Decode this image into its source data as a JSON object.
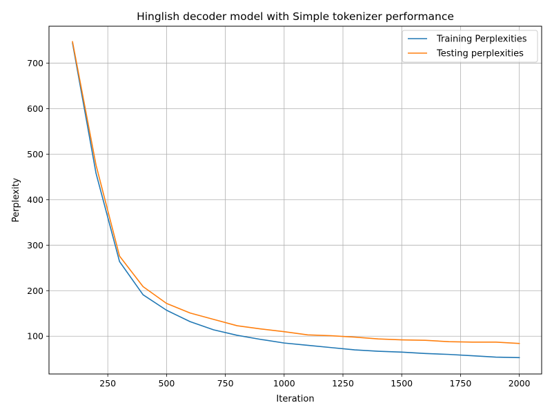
{
  "chart_data": {
    "type": "line",
    "title": "Hinglish decoder model with Simple tokenizer performance",
    "xlabel": "Iteration",
    "ylabel": "Perplexity",
    "xlim": [
      0,
      2095
    ],
    "ylim": [
      17,
      781
    ],
    "xticks": [
      250,
      500,
      750,
      1000,
      1250,
      1500,
      1750,
      2000
    ],
    "yticks": [
      100,
      200,
      300,
      400,
      500,
      600,
      700
    ],
    "grid": true,
    "legend_position": "upper right",
    "x": [
      100,
      200,
      300,
      400,
      500,
      600,
      700,
      800,
      900,
      1000,
      1100,
      1200,
      1300,
      1400,
      1500,
      1600,
      1700,
      1800,
      1900,
      2000
    ],
    "series": [
      {
        "name": "Training Perplexities",
        "color": "#1f77b4",
        "values": [
          744,
          458,
          264,
          191,
          157,
          132,
          114,
          102,
          93,
          85,
          80,
          75,
          70,
          67,
          65,
          62,
          60,
          57,
          54,
          53
        ]
      },
      {
        "name": "Testing perplexities",
        "color": "#ff7f0e",
        "values": [
          747,
          476,
          276,
          209,
          172,
          151,
          137,
          123,
          116,
          110,
          103,
          101,
          98,
          94,
          92,
          91,
          88,
          87,
          87,
          84
        ]
      }
    ]
  }
}
